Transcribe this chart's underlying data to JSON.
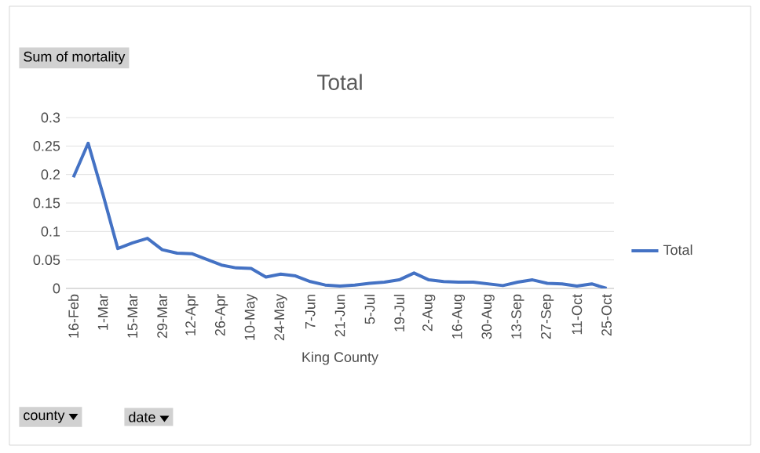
{
  "chart_data": {
    "type": "line",
    "title": "Total",
    "xlabel": "King County",
    "categories": [
      "16-Feb",
      null,
      "1-Mar",
      null,
      "15-Mar",
      null,
      "29-Mar",
      null,
      "12-Apr",
      null,
      "26-Apr",
      null,
      "10-May",
      null,
      "24-May",
      null,
      "7-Jun",
      null,
      "21-Jun",
      null,
      "5-Jul",
      null,
      "19-Jul",
      null,
      "2-Aug",
      null,
      "16-Aug",
      null,
      "30-Aug",
      null,
      "13-Sep",
      null,
      "27-Sep",
      null,
      "11-Oct",
      null,
      "25-Oct"
    ],
    "series": [
      {
        "name": "Total",
        "color": "#4472c4",
        "values": [
          0.195,
          0.255,
          0.165,
          0.07,
          0.08,
          0.088,
          0.068,
          0.062,
          0.061,
          0.051,
          0.041,
          0.036,
          0.035,
          0.02,
          0.025,
          0.022,
          0.012,
          0.006,
          0.004,
          0.006,
          0.009,
          0.011,
          0.015,
          0.027,
          0.015,
          0.012,
          0.011,
          0.011,
          0.008,
          0.005,
          0.011,
          0.015,
          0.009,
          0.008,
          0.004,
          0.008,
          0
        ]
      }
    ],
    "ylim": [
      0,
      0.3
    ],
    "yticks": [
      0,
      0.05,
      0.1,
      0.15,
      0.2,
      0.25,
      0.3
    ],
    "grid": "y",
    "legend": "right",
    "marker": "none",
    "line_style": "solid",
    "annotations": [
      "Sum of mortality",
      "county",
      "date"
    ]
  }
}
